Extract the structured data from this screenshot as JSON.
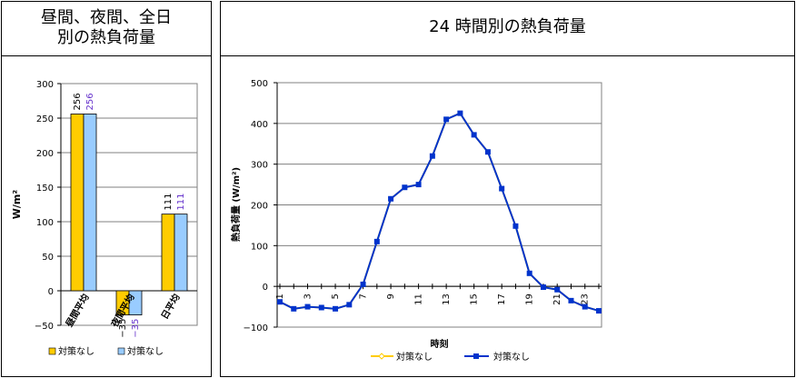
{
  "left_panel": {
    "title_line1": "昼間、夜間、全日",
    "title_line2": "別の熱負荷量"
  },
  "right_panel": {
    "title": "24 時間別の熱負荷量"
  },
  "colors": {
    "bar_series1": "#ffcc00",
    "bar_series2": "#99ccff",
    "line_series1": "#ffcc00",
    "line_series2": "#0033cc",
    "label_series2": "#6633cc"
  },
  "chart_data": [
    {
      "type": "bar",
      "title": "",
      "ylabel": "W/m²",
      "xlabel": "",
      "ylim": [
        -50,
        300
      ],
      "yticks": [
        "300",
        "250",
        "200",
        "150",
        "100",
        "50",
        "0",
        "−50"
      ],
      "yticks_values": [
        300,
        250,
        200,
        150,
        100,
        50,
        0,
        -50
      ],
      "categories": [
        "昼間平均",
        "夜間平均",
        "日平均"
      ],
      "series": [
        {
          "name": "対策なし",
          "values": [
            256,
            -35,
            111
          ],
          "labels": [
            "256",
            "−35",
            "111"
          ]
        },
        {
          "name": "対策なし",
          "values": [
            256,
            -35,
            111
          ],
          "labels": [
            "256",
            "−35",
            "111"
          ]
        }
      ],
      "grid": "horizontal",
      "legend": "bottom"
    },
    {
      "type": "line",
      "title": "",
      "ylabel": "熱負荷量 (W/m²)",
      "xlabel": "時刻",
      "ylim": [
        -100,
        500
      ],
      "yticks": [
        "500",
        "400",
        "300",
        "200",
        "100",
        "0",
        "−100"
      ],
      "yticks_values": [
        500,
        400,
        300,
        200,
        100,
        0,
        -100
      ],
      "x": [
        1,
        2,
        3,
        4,
        5,
        6,
        7,
        8,
        9,
        10,
        11,
        12,
        13,
        14,
        15,
        16,
        17,
        18,
        19,
        20,
        21,
        22,
        23,
        24
      ],
      "xticks": [
        "1",
        "3",
        "5",
        "7",
        "9",
        "11",
        "13",
        "15",
        "17",
        "19",
        "21",
        "23"
      ],
      "xticks_values": [
        1,
        3,
        5,
        7,
        9,
        11,
        13,
        15,
        17,
        19,
        21,
        23
      ],
      "series": [
        {
          "name": "対策なし",
          "values": [
            -38,
            -55,
            -50,
            -52,
            -55,
            -45,
            5,
            110,
            215,
            243,
            250,
            320,
            410,
            425,
            372,
            330,
            240,
            148,
            32,
            -2,
            -8,
            -35,
            -50,
            -60
          ]
        },
        {
          "name": "対策なし",
          "values": [
            -38,
            -55,
            -50,
            -52,
            -55,
            -45,
            5,
            110,
            215,
            243,
            250,
            320,
            410,
            425,
            372,
            330,
            240,
            148,
            32,
            -2,
            -8,
            -35,
            -50,
            -60
          ]
        }
      ],
      "grid": "horizontal",
      "legend": "bottom"
    }
  ]
}
